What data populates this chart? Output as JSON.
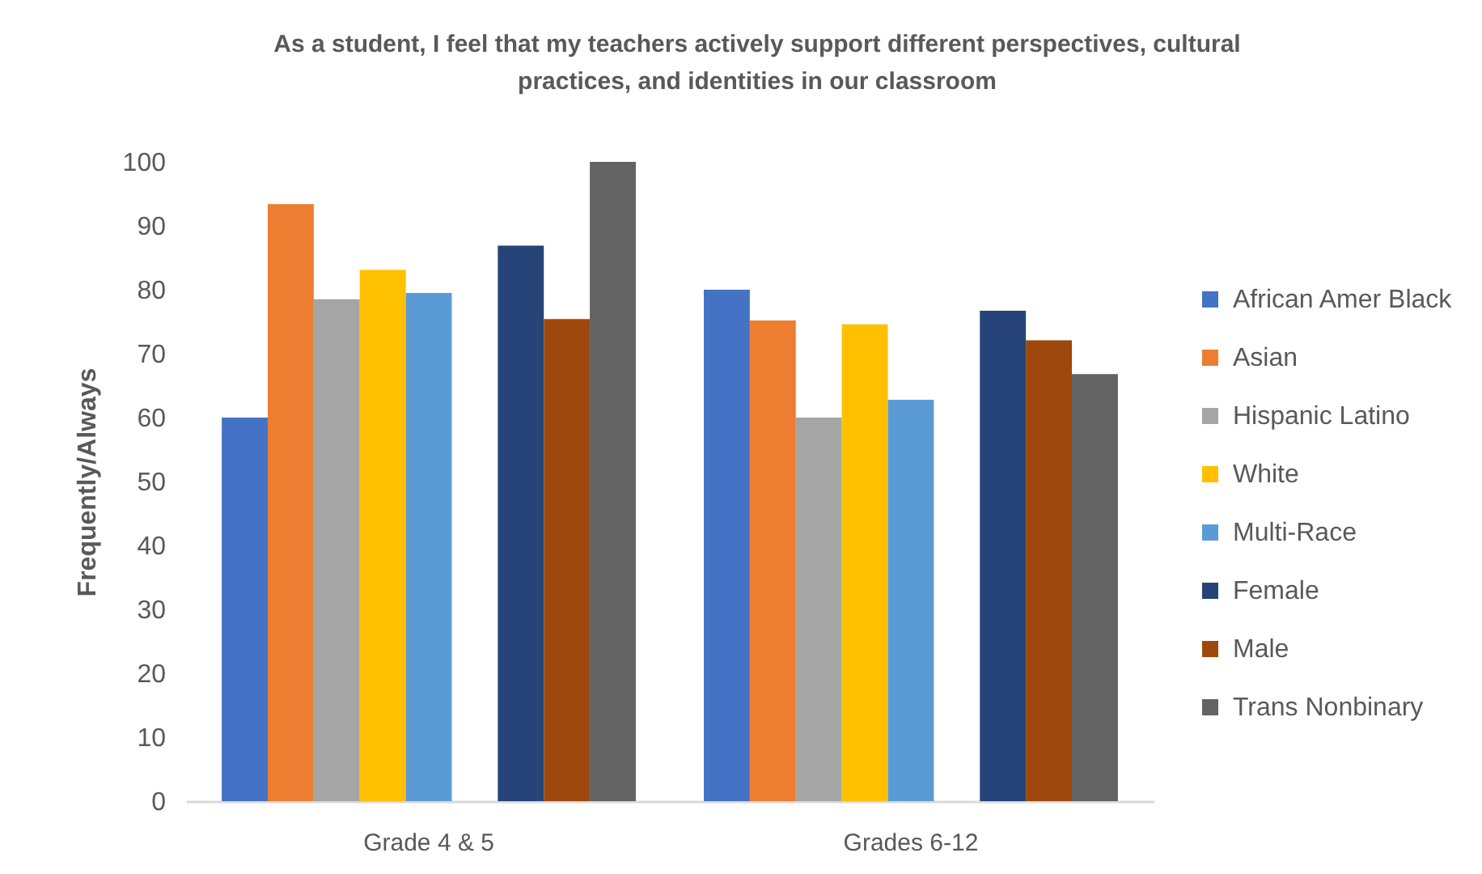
{
  "chart_data": {
    "type": "bar",
    "title": "As a student, I feel that my teachers actively support different perspectives, cultural practices, and identities in our classroom",
    "ylabel": "Frequently/Always",
    "categories": [
      "Grade 4 & 5",
      "Grades 6-12"
    ],
    "ylim": [
      0,
      100
    ],
    "yticks": [
      0,
      10,
      20,
      30,
      40,
      50,
      60,
      70,
      80,
      90,
      100
    ],
    "legend": "right",
    "series": [
      {
        "name": "African Amer Black",
        "color": "#4472c4",
        "values": [
          60.0,
          80.0
        ]
      },
      {
        "name": "Asian",
        "color": "#ed7d31",
        "values": [
          93.4,
          75.2
        ]
      },
      {
        "name": "Hispanic Latino",
        "color": "#a5a5a5",
        "values": [
          78.5,
          60.0
        ]
      },
      {
        "name": "White",
        "color": "#ffc000",
        "values": [
          83.1,
          74.6
        ]
      },
      {
        "name": "Multi-Race",
        "color": "#5b9bd5",
        "values": [
          79.5,
          62.8
        ]
      },
      {
        "values": [
          null,
          null
        ]
      },
      {
        "name": "Female",
        "color": "#264478",
        "values": [
          86.9,
          76.7
        ]
      },
      {
        "name": "Male",
        "color": "#9e480e",
        "values": [
          75.4,
          72.1
        ]
      },
      {
        "name": "Trans Nonbinary",
        "color": "#636363",
        "values": [
          100,
          66.8
        ]
      }
    ]
  }
}
